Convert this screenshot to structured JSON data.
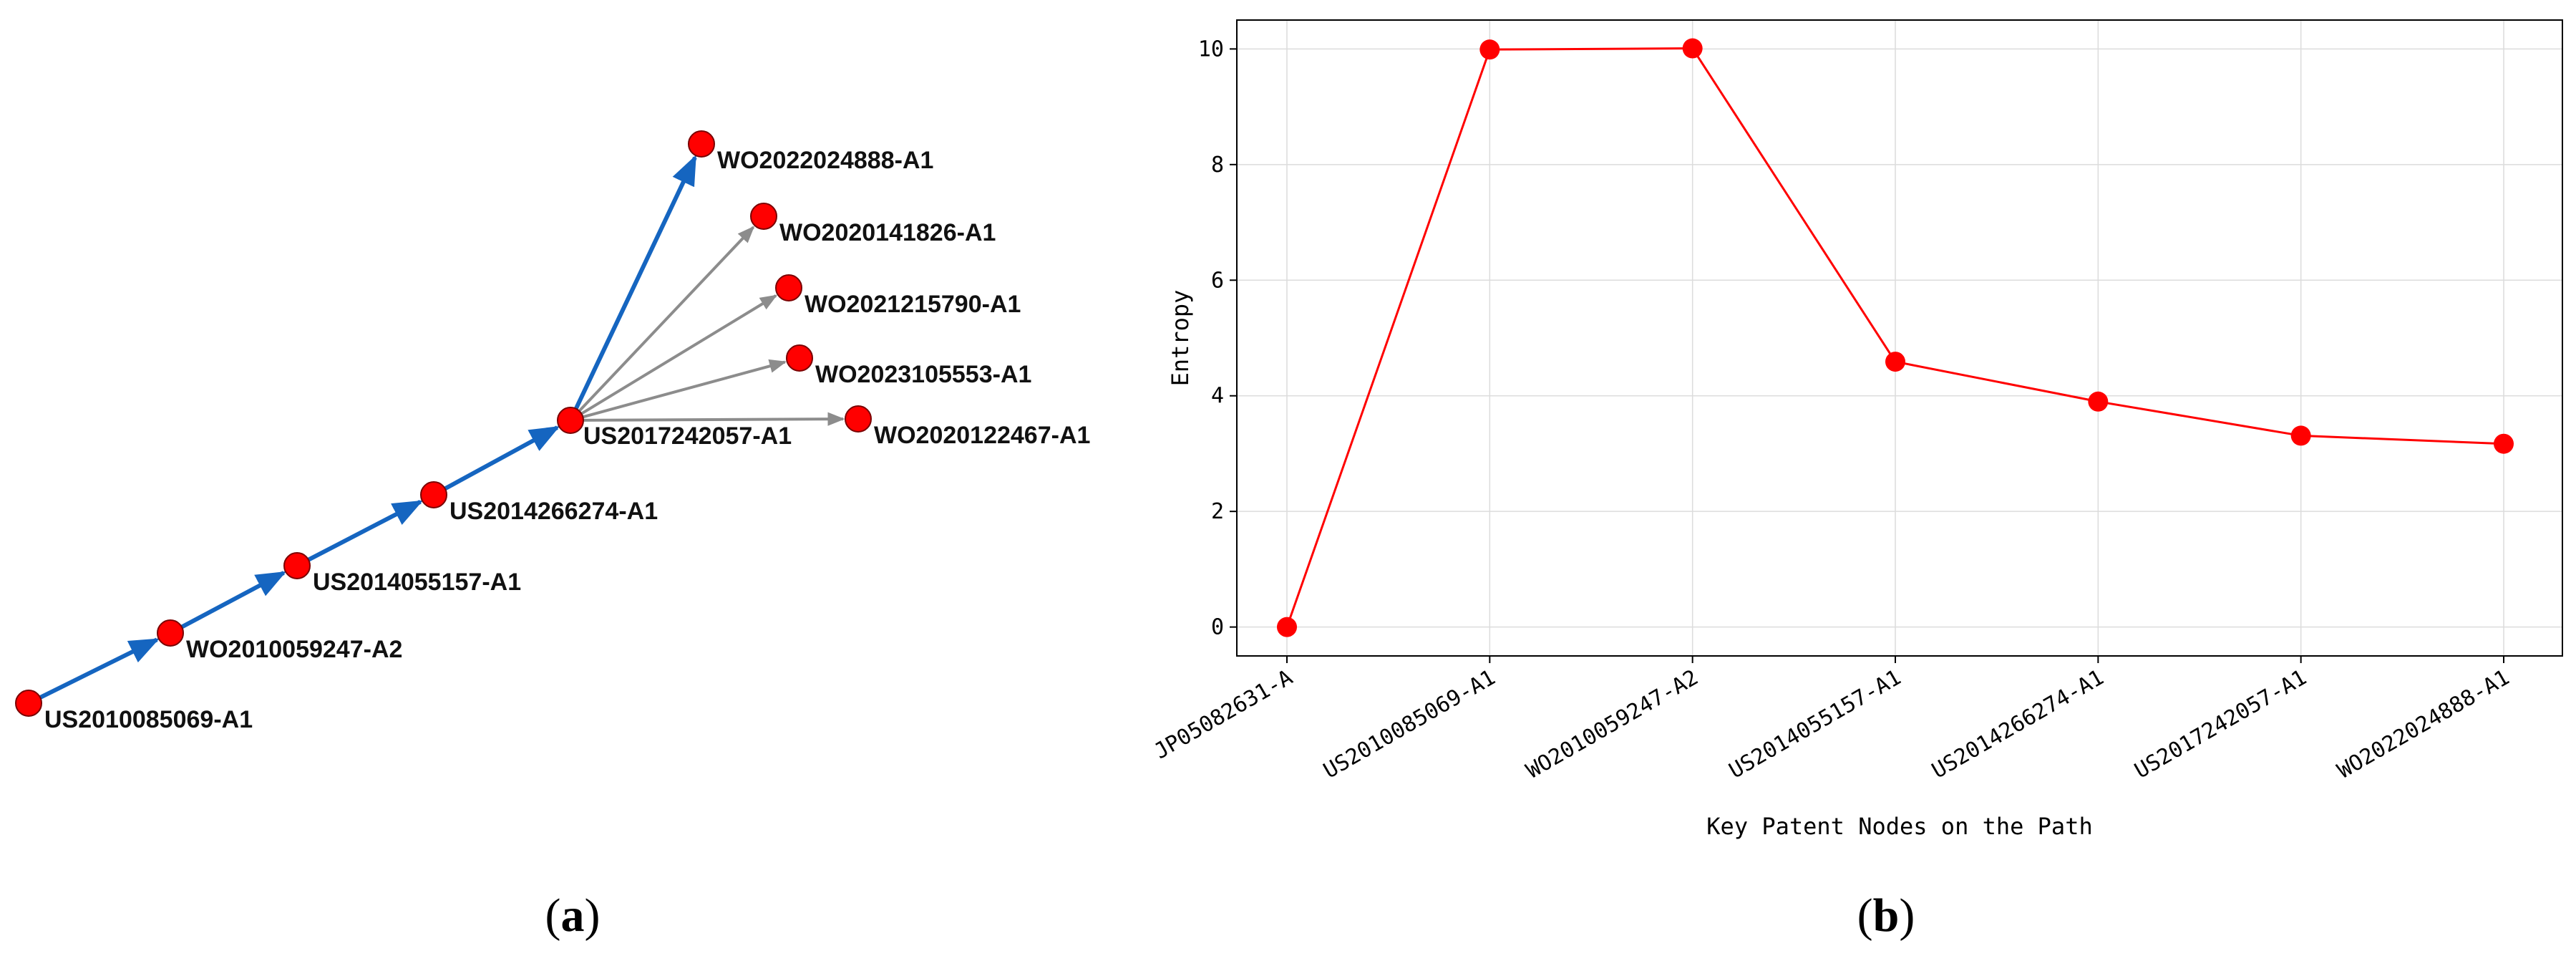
{
  "panel_a": {
    "caption_open": "(",
    "caption_letter": "a",
    "caption_close": ")",
    "edge_colors": {
      "main_path": "#1565c0",
      "branch": "#8c8c8c"
    },
    "node_color": "#ff0000",
    "nodes": [
      {
        "id": "US2010085069-A1",
        "label": "US2010085069-A1"
      },
      {
        "id": "WO2010059247-A2",
        "label": "WO2010059247-A2"
      },
      {
        "id": "US2014055157-A1",
        "label": "US2014055157-A1"
      },
      {
        "id": "US2014266274-A1",
        "label": "US2014266274-A1"
      },
      {
        "id": "US2017242057-A1",
        "label": "US2017242057-A1"
      },
      {
        "id": "WO2022024888-A1",
        "label": "WO2022024888-A1"
      },
      {
        "id": "WO2020141826-A1",
        "label": "WO2020141826-A1"
      },
      {
        "id": "WO2021215790-A1",
        "label": "WO2021215790-A1"
      },
      {
        "id": "WO2023105553-A1",
        "label": "WO2023105553-A1"
      },
      {
        "id": "WO2020122467-A1",
        "label": "WO2020122467-A1"
      }
    ],
    "edges": [
      {
        "from": "US2010085069-A1",
        "to": "WO2010059247-A2",
        "kind": "main_path"
      },
      {
        "from": "WO2010059247-A2",
        "to": "US2014055157-A1",
        "kind": "main_path"
      },
      {
        "from": "US2014055157-A1",
        "to": "US2014266274-A1",
        "kind": "main_path"
      },
      {
        "from": "US2014266274-A1",
        "to": "US2017242057-A1",
        "kind": "main_path"
      },
      {
        "from": "US2017242057-A1",
        "to": "WO2022024888-A1",
        "kind": "main_path"
      },
      {
        "from": "US2017242057-A1",
        "to": "WO2020141826-A1",
        "kind": "branch"
      },
      {
        "from": "US2017242057-A1",
        "to": "WO2021215790-A1",
        "kind": "branch"
      },
      {
        "from": "US2017242057-A1",
        "to": "WO2023105553-A1",
        "kind": "branch"
      },
      {
        "from": "US2017242057-A1",
        "to": "WO2020122467-A1",
        "kind": "branch"
      }
    ]
  },
  "chart_data": {
    "type": "line",
    "categories": [
      "JP05082631-A",
      "US2010085069-A1",
      "WO2010059247-A2",
      "US2014055157-A1",
      "US2014266274-A1",
      "US2017242057-A1",
      "WO2022024888-A1"
    ],
    "values": [
      0.0,
      9.99,
      10.01,
      4.59,
      3.9,
      3.31,
      3.17
    ],
    "ylim": [
      -0.5,
      10.5
    ],
    "yticks": [
      "0",
      "2",
      "4",
      "6",
      "8",
      "10"
    ],
    "xlabel": "Key Patent Nodes on the Path",
    "ylabel": "Entropy",
    "title": "",
    "grid": true,
    "line_color": "#ff0000",
    "marker_color": "#ff0000"
  },
  "panel_b": {
    "caption_open": "(",
    "caption_letter": "b",
    "caption_close": ")"
  }
}
